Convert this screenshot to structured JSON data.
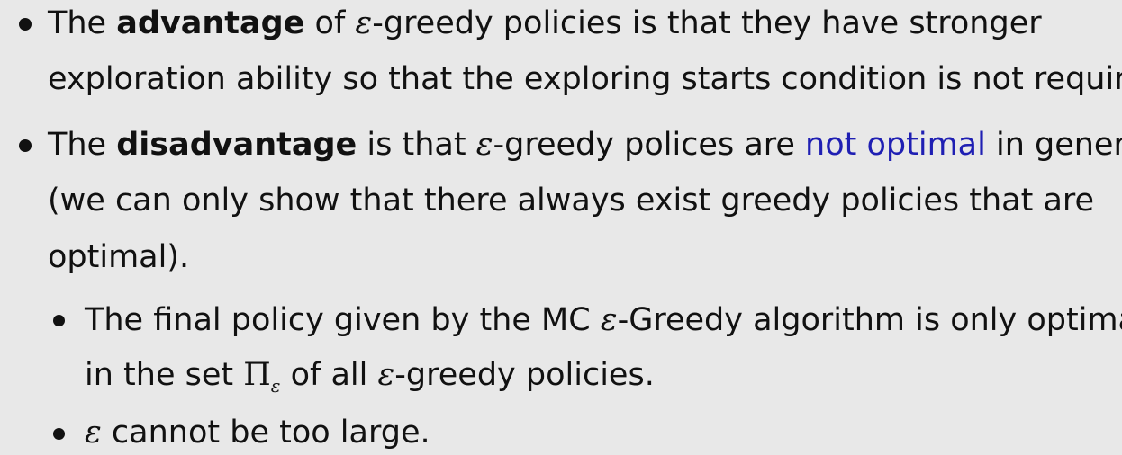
{
  "content": {
    "b1": {
      "the": "The",
      "advantage": "advantage",
      "of": " of ",
      "epsilon": "ε",
      "rest": "-greedy policies is that they have stronger",
      "line2": "exploration ability so that the exploring starts condition is not required."
    },
    "b2": {
      "the": "The",
      "disadvantage": "disadvantage",
      "is_that": " is that ",
      "epsilon": "ε",
      "greedy_polices_are": "-greedy polices are ",
      "not_optimal": "not optimal",
      "in_general": " in general",
      "line2": "(we can only show that there always exist greedy policies that are",
      "line3": "optimal)."
    },
    "sub1": {
      "lead": "The final policy given by the MC ",
      "epsilon": "ε",
      "tail": "-Greedy algorithm is only optimal",
      "line2_pre": "in the set ",
      "pi": "Π",
      "pi_sub": "ε",
      "line2_mid": " of all ",
      "epsilon2": "ε",
      "line2_end": "-greedy policies."
    },
    "sub2": {
      "epsilon": "ε",
      "text": " cannot be too large."
    }
  }
}
